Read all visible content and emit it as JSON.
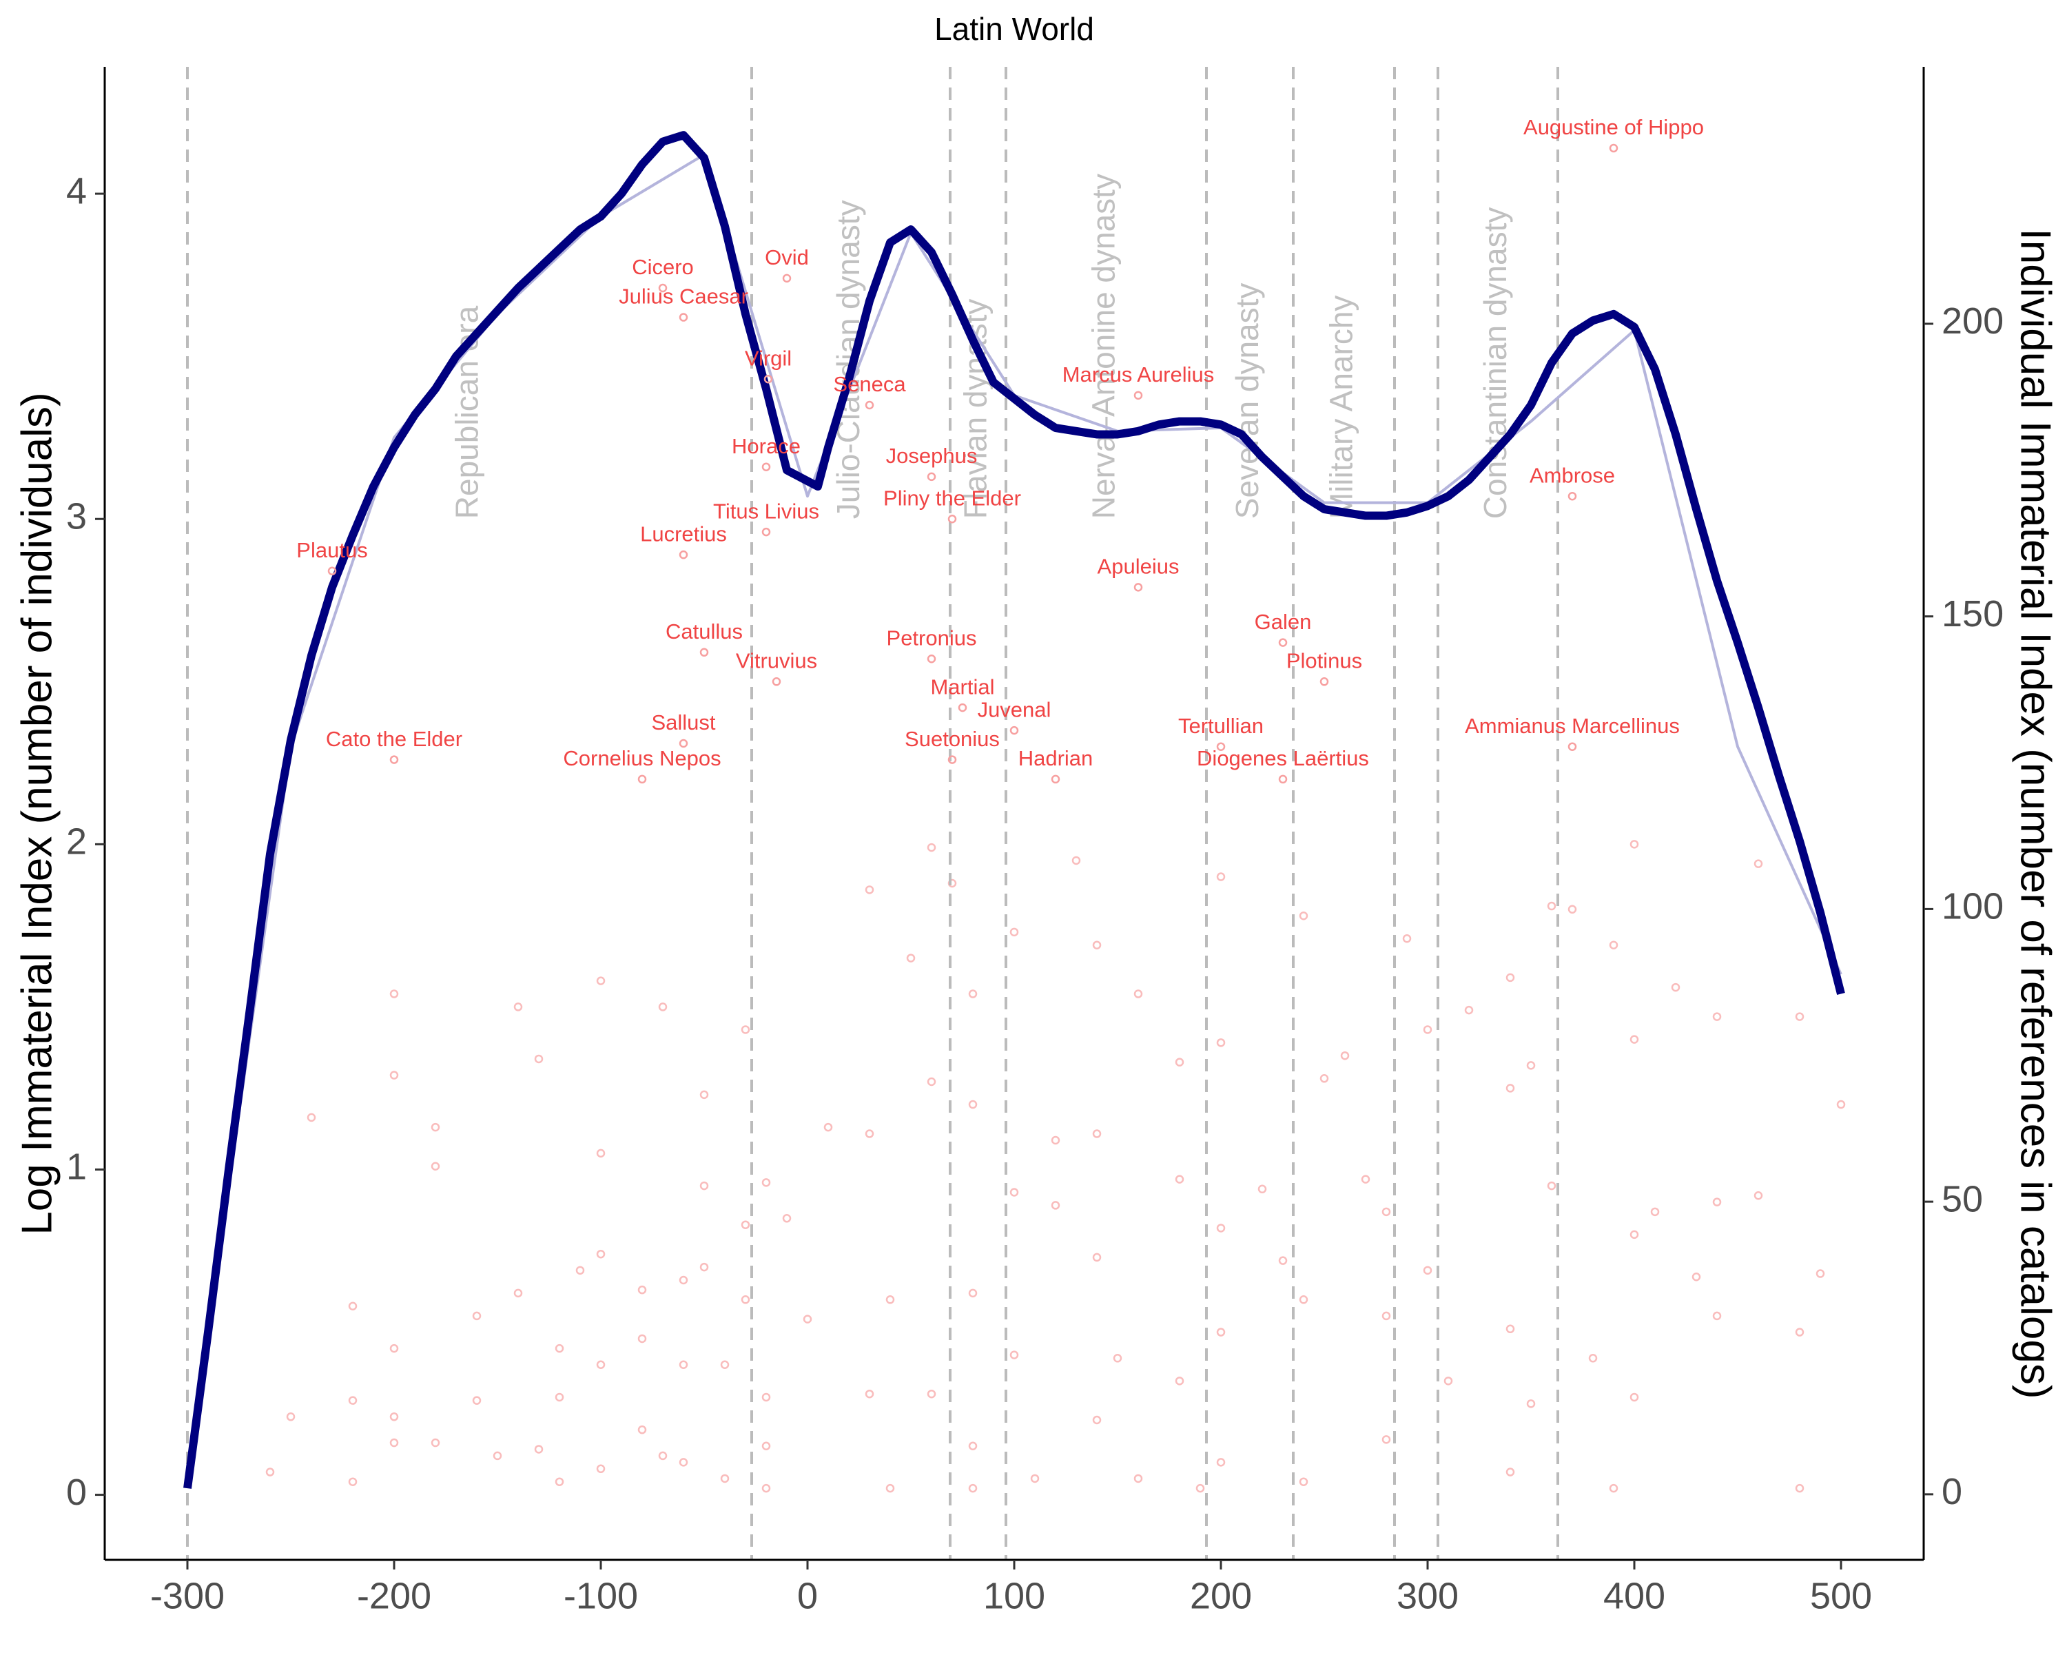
{
  "chart_data": {
    "type": "line",
    "title": "Latin World",
    "ylabel": "Log Immaterial Index (number of individuals)",
    "y2label": "Individual Immaterial Index (number of references in catalogs)",
    "xlim": [
      -340,
      540
    ],
    "xticks": [
      -300,
      -200,
      -100,
      0,
      100,
      200,
      300,
      400,
      500
    ],
    "ylim": [
      -0.2,
      4.39
    ],
    "yticks": [
      0,
      1,
      2,
      3,
      4
    ],
    "y2lim": [
      -11.2,
      243.9
    ],
    "y2ticks": [
      0,
      50,
      100,
      150,
      200
    ],
    "period_lines": [
      -300,
      -27,
      69,
      96,
      193,
      235,
      284,
      305,
      363
    ],
    "periods": [
      "Republican era",
      "Julio-Claudian dynasty",
      "Flavian dynasty",
      "Nerva–Antonine dynasty",
      "Severan dynasty",
      "Military Anarchy",
      null,
      "Constantinian dynasty"
    ],
    "series": [
      {
        "color": "#b4b4dc",
        "x": [
          -300,
          -250,
          -200,
          -150,
          -100,
          -50,
          0,
          50,
          100,
          150,
          200,
          250,
          300,
          350,
          400,
          450,
          500
        ],
        "values": [
          0.05,
          2.3,
          3.25,
          3.63,
          3.93,
          4.12,
          3.07,
          3.88,
          3.38,
          3.27,
          3.28,
          3.05,
          3.05,
          3.3,
          3.58,
          2.3,
          1.6
        ]
      },
      {
        "color": "#00007f",
        "x": [
          -300,
          -290,
          -280,
          -270,
          -260,
          -250,
          -240,
          -230,
          -220,
          -210,
          -200,
          -190,
          -180,
          -170,
          -160,
          -150,
          -140,
          -130,
          -120,
          -110,
          -100,
          -90,
          -80,
          -70,
          -60,
          -50,
          -40,
          -30,
          -20,
          -10,
          5,
          10,
          20,
          30,
          40,
          50,
          60,
          70,
          80,
          90,
          100,
          110,
          120,
          130,
          140,
          150,
          160,
          170,
          180,
          190,
          200,
          210,
          220,
          230,
          240,
          250,
          260,
          270,
          280,
          290,
          300,
          310,
          320,
          330,
          340,
          350,
          360,
          370,
          380,
          390,
          400,
          410,
          420,
          430,
          440,
          450,
          460,
          470,
          480,
          490,
          500
        ],
        "values": [
          0.02,
          0.5,
          1.0,
          1.48,
          1.97,
          2.32,
          2.58,
          2.79,
          2.95,
          3.1,
          3.22,
          3.32,
          3.4,
          3.5,
          3.57,
          3.64,
          3.71,
          3.77,
          3.83,
          3.89,
          3.93,
          4.0,
          4.09,
          4.16,
          4.18,
          4.11,
          3.9,
          3.63,
          3.4,
          3.15,
          3.1,
          3.22,
          3.43,
          3.67,
          3.85,
          3.89,
          3.82,
          3.69,
          3.55,
          3.42,
          3.37,
          3.32,
          3.28,
          3.27,
          3.26,
          3.26,
          3.27,
          3.29,
          3.3,
          3.3,
          3.29,
          3.26,
          3.19,
          3.13,
          3.07,
          3.03,
          3.02,
          3.01,
          3.01,
          3.02,
          3.04,
          3.07,
          3.12,
          3.19,
          3.26,
          3.35,
          3.48,
          3.57,
          3.61,
          3.63,
          3.59,
          3.46,
          3.26,
          3.03,
          2.81,
          2.62,
          2.42,
          2.21,
          2.01,
          1.79,
          1.54
        ]
      }
    ],
    "label_color": "#f04444",
    "named_points": [
      {
        "name": "Augustine of Hippo",
        "x": 390,
        "y": 4.14
      },
      {
        "name": "Cicero",
        "x": -70,
        "y": 3.71
      },
      {
        "name": "Ovid",
        "x": -10,
        "y": 3.74
      },
      {
        "name": "Julius Caesar",
        "x": -60,
        "y": 3.62
      },
      {
        "name": "Virgil",
        "x": -19,
        "y": 3.43
      },
      {
        "name": "Seneca",
        "x": 30,
        "y": 3.35
      },
      {
        "name": "Marcus Aurelius",
        "x": 160,
        "y": 3.38
      },
      {
        "name": "Horace",
        "x": -20,
        "y": 3.16
      },
      {
        "name": "Josephus",
        "x": 60,
        "y": 3.13
      },
      {
        "name": "Titus Livius",
        "x": -20,
        "y": 2.96
      },
      {
        "name": "Pliny the Elder",
        "x": 70,
        "y": 3.0
      },
      {
        "name": "Ambrose",
        "x": 370,
        "y": 3.07
      },
      {
        "name": "Plautus",
        "x": -230,
        "y": 2.84
      },
      {
        "name": "Lucretius",
        "x": -60,
        "y": 2.89
      },
      {
        "name": "Apuleius",
        "x": 160,
        "y": 2.79
      },
      {
        "name": "Catullus",
        "x": -50,
        "y": 2.59
      },
      {
        "name": "Petronius",
        "x": 60,
        "y": 2.57
      },
      {
        "name": "Galen",
        "x": 230,
        "y": 2.62
      },
      {
        "name": "Vitruvius",
        "x": -15,
        "y": 2.5
      },
      {
        "name": "Plotinus",
        "x": 250,
        "y": 2.5
      },
      {
        "name": "Martial",
        "x": 75,
        "y": 2.42
      },
      {
        "name": "Juvenal",
        "x": 100,
        "y": 2.35
      },
      {
        "name": "Sallust",
        "x": -60,
        "y": 2.31
      },
      {
        "name": "Tertullian",
        "x": 200,
        "y": 2.3
      },
      {
        "name": "Ammianus Marcellinus",
        "x": 370,
        "y": 2.3
      },
      {
        "name": "Suetonius",
        "x": 70,
        "y": 2.26
      },
      {
        "name": "Cornelius Nepos",
        "x": -80,
        "y": 2.2
      },
      {
        "name": "Diogenes Laërtius",
        "x": 230,
        "y": 2.2
      },
      {
        "name": "Cato the Elder",
        "x": -200,
        "y": 2.26
      },
      {
        "name": "Hadrian",
        "x": 120,
        "y": 2.2
      }
    ],
    "dot_color": "#f7a0a0",
    "background_points": {
      "x": [
        -260,
        -250,
        -240,
        -220,
        -220,
        -220,
        -200,
        -200,
        -200,
        -200,
        -200,
        -180,
        -180,
        -180,
        -160,
        -160,
        -150,
        -140,
        -140,
        -130,
        -130,
        -120,
        -120,
        -120,
        -110,
        -100,
        -100,
        -100,
        -100,
        -100,
        -80,
        -80,
        -80,
        -70,
        -70,
        -60,
        -60,
        -60,
        -50,
        -50,
        -50,
        -40,
        -40,
        -30,
        -30,
        -30,
        -20,
        -20,
        -20,
        -20,
        -10,
        0,
        10,
        30,
        30,
        30,
        40,
        40,
        50,
        60,
        60,
        60,
        70,
        80,
        80,
        80,
        80,
        80,
        100,
        100,
        100,
        110,
        120,
        120,
        130,
        140,
        140,
        140,
        140,
        150,
        160,
        160,
        180,
        180,
        180,
        190,
        200,
        200,
        200,
        200,
        200,
        220,
        230,
        240,
        240,
        240,
        250,
        260,
        270,
        280,
        280,
        280,
        290,
        300,
        300,
        310,
        320,
        340,
        340,
        340,
        340,
        350,
        350,
        360,
        360,
        370,
        380,
        390,
        390,
        400,
        400,
        400,
        400,
        410,
        420,
        430,
        440,
        440,
        440,
        460,
        460,
        480,
        480,
        480,
        490,
        500
      ],
      "y": [
        0.07,
        0.24,
        1.16,
        0.58,
        0.29,
        0.04,
        1.54,
        1.29,
        0.45,
        0.24,
        0.16,
        1.13,
        1.01,
        0.16,
        0.55,
        0.29,
        0.12,
        1.5,
        0.62,
        1.34,
        0.14,
        0.45,
        0.3,
        0.04,
        0.69,
        1.58,
        1.05,
        0.74,
        0.4,
        0.08,
        0.63,
        0.48,
        0.2,
        1.5,
        0.12,
        0.66,
        0.4,
        0.1,
        1.23,
        0.95,
        0.7,
        0.4,
        0.05,
        1.43,
        0.83,
        0.6,
        0.96,
        0.3,
        0.15,
        0.02,
        0.85,
        0.54,
        1.13,
        1.86,
        1.11,
        0.31,
        0.6,
        0.02,
        1.65,
        1.99,
        1.27,
        0.31,
        1.88,
        1.54,
        1.2,
        0.62,
        0.15,
        0.02,
        1.73,
        0.93,
        0.43,
        0.05,
        1.09,
        0.89,
        1.95,
        1.69,
        1.11,
        0.73,
        0.23,
        0.42,
        1.54,
        0.05,
        1.33,
        0.97,
        0.35,
        0.02,
        1.9,
        1.39,
        0.82,
        0.5,
        0.1,
        0.94,
        0.72,
        1.78,
        0.6,
        0.04,
        1.28,
        1.35,
        0.97,
        0.87,
        0.55,
        0.17,
        1.71,
        1.43,
        0.69,
        0.35,
        1.49,
        1.59,
        1.25,
        0.51,
        0.07,
        1.32,
        0.28,
        1.81,
        0.95,
        1.8,
        0.42,
        1.69,
        0.02,
        2.0,
        1.4,
        0.8,
        0.3,
        0.87,
        1.56,
        0.67,
        1.47,
        0.9,
        0.55,
        1.94,
        0.92,
        1.47,
        0.5,
        0.02,
        0.68,
        1.2
      ]
    }
  }
}
